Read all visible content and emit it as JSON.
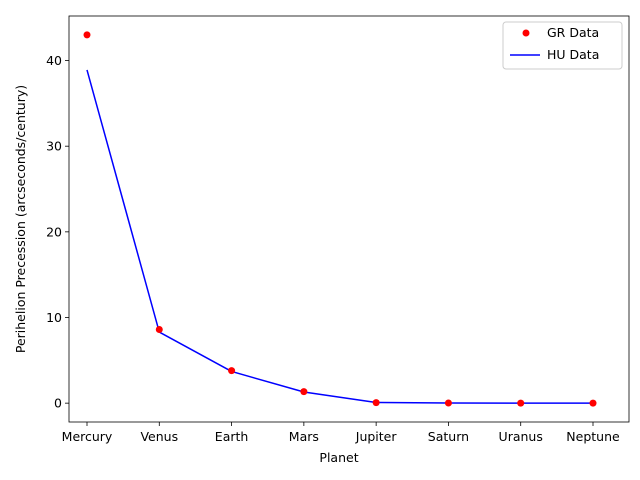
{
  "chart_data": {
    "type": "line",
    "title": "",
    "xlabel": "Planet",
    "ylabel": "Perihelion Precession (arcseconds/century)",
    "categories": [
      "Mercury",
      "Venus",
      "Earth",
      "Mars",
      "Jupiter",
      "Saturn",
      "Uranus",
      "Neptune"
    ],
    "ylim": [
      -2.2,
      45.2
    ],
    "yticks": [
      0,
      10,
      20,
      30,
      40
    ],
    "grid": false,
    "legend": "upper right",
    "series": [
      {
        "name": "GR Data",
        "kind": "scatter",
        "color": "#ff0000",
        "values": [
          43.0,
          8.6,
          3.8,
          1.35,
          0.06,
          0.014,
          0.0024,
          0.0008
        ]
      },
      {
        "name": "HU Data",
        "kind": "line",
        "color": "#0000ff",
        "values": [
          38.9,
          8.3,
          3.7,
          1.3,
          0.08,
          0.02,
          0.004,
          0.001
        ]
      }
    ]
  }
}
